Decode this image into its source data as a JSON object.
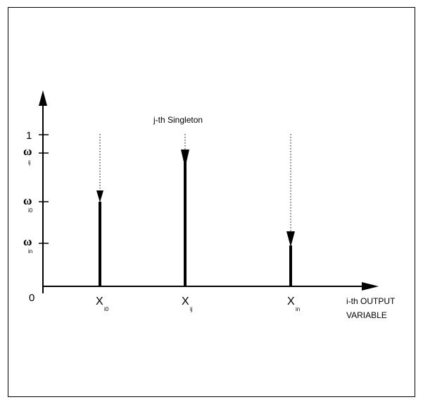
{
  "title": "j-th Singleton",
  "axes": {
    "origin_label": "0",
    "y_top_label": "1",
    "x_label_line1": "i-th OUTPUT",
    "x_label_line2": "VARIABLE"
  },
  "y_ticks": [
    {
      "symbol": "ω",
      "sub": "ij"
    },
    {
      "symbol": "ω",
      "sub": "i0"
    },
    {
      "symbol": "ω",
      "sub": "in"
    }
  ],
  "singletons": [
    {
      "symbol": "X",
      "sub": "i0",
      "height": 0.56
    },
    {
      "symbol": "X",
      "sub": "ij",
      "height": 0.88
    },
    {
      "symbol": "X",
      "sub": "in",
      "height": 0.27
    }
  ],
  "colors": {
    "line": "#000000"
  }
}
